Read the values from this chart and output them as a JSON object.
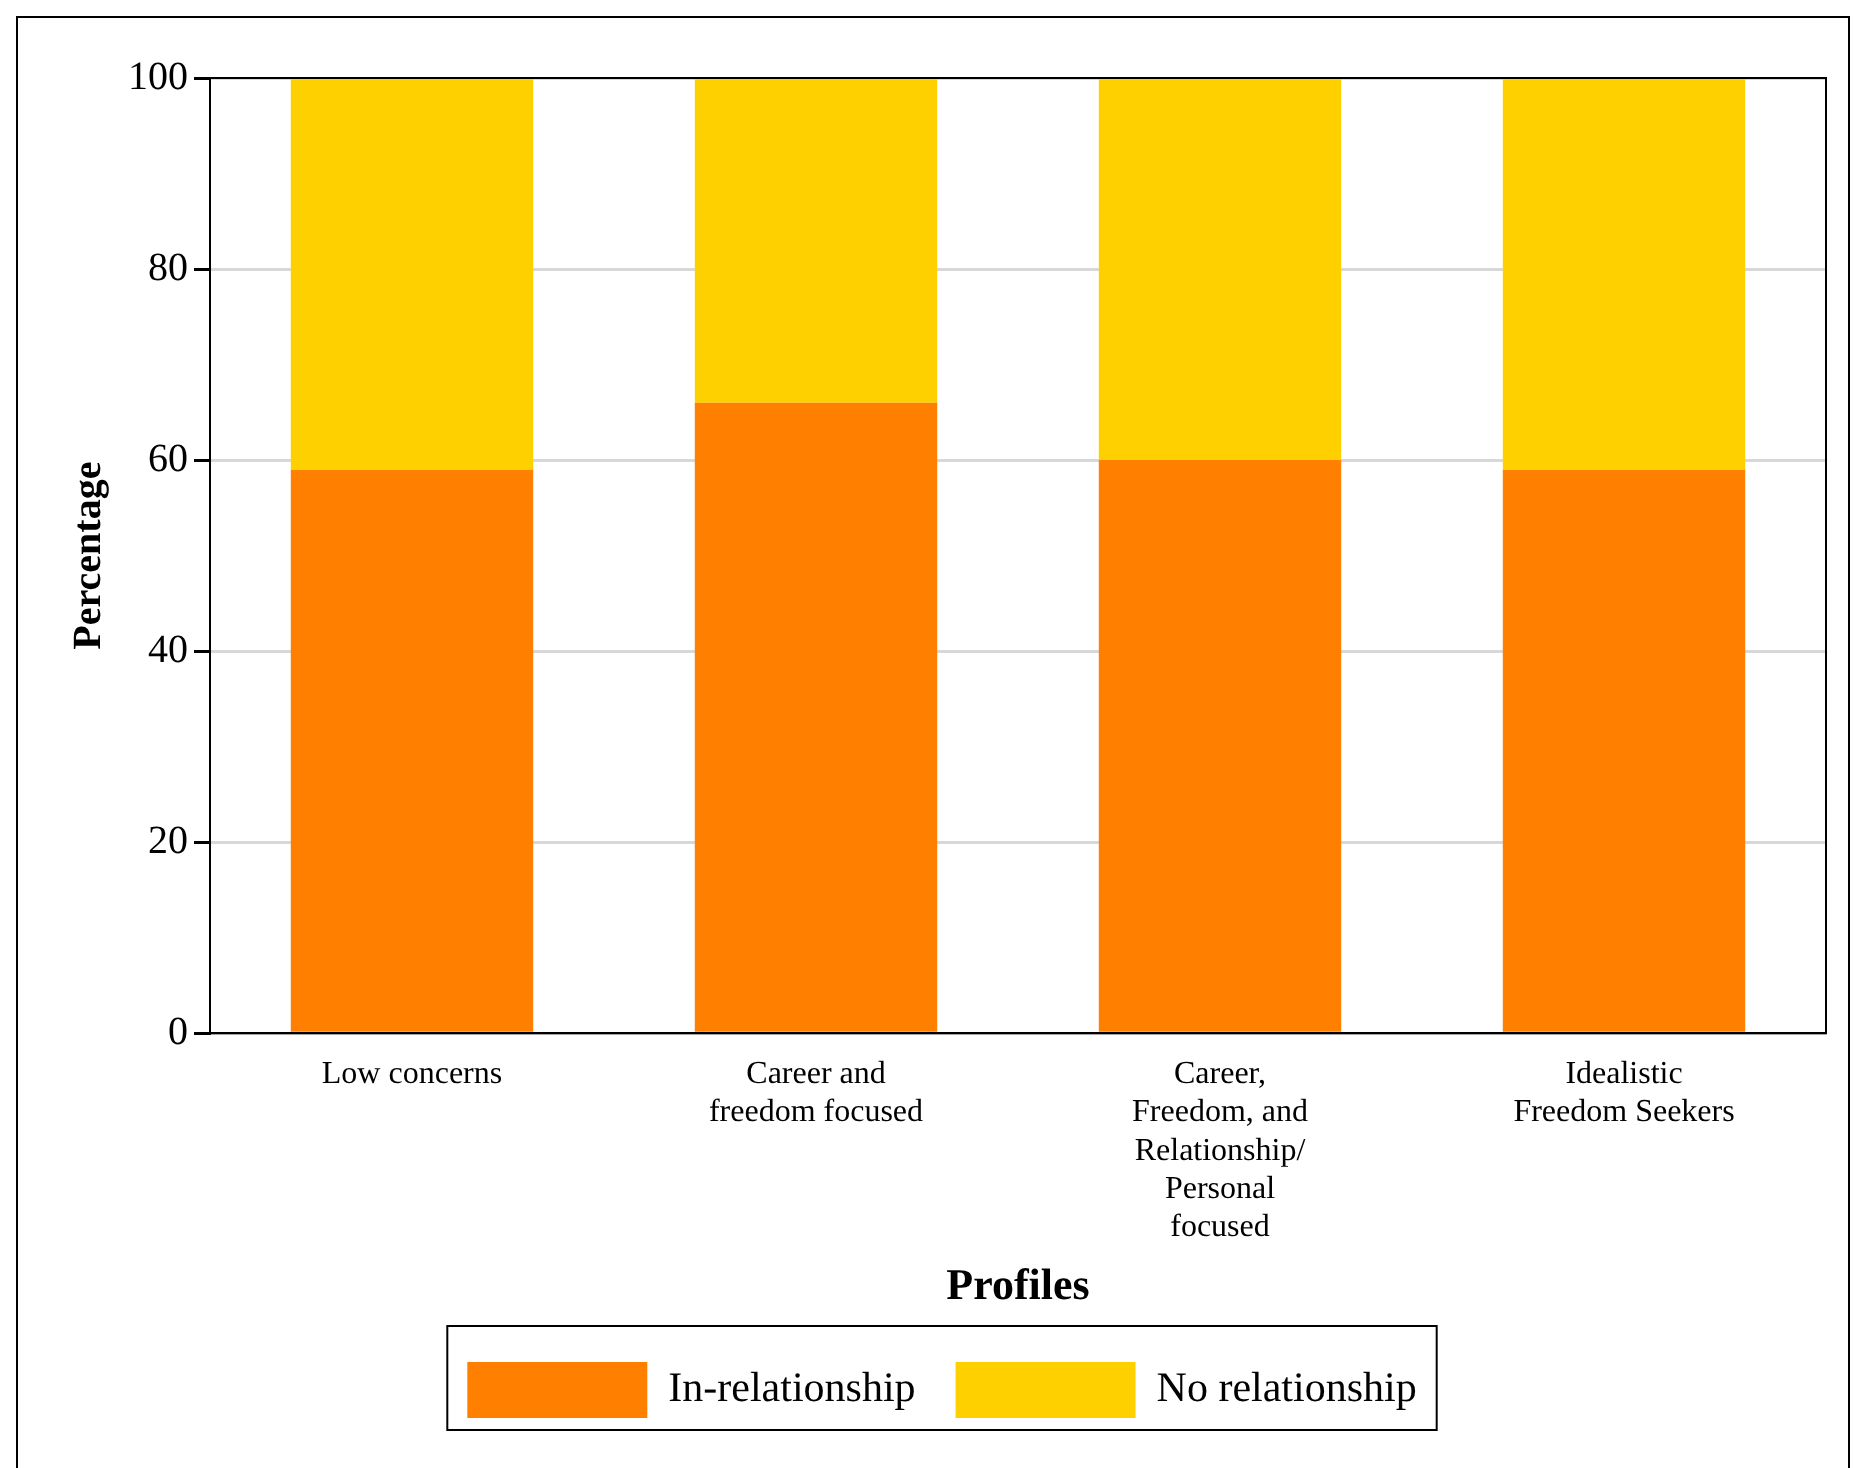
{
  "chart_data": {
    "type": "bar",
    "stacked": true,
    "xlabel": "Profiles",
    "ylabel": "Percentage",
    "categories": [
      "Low concerns",
      "Career and freedom focused",
      "Career, Freedom, and Relationship/ Personal focused",
      "Idealistic Freedom Seekers"
    ],
    "series": [
      {
        "name": "In-relationship",
        "color": "#ff7f00",
        "values": [
          59,
          66,
          60,
          59
        ]
      },
      {
        "name": "No relationship",
        "color": "#ffd000",
        "values": [
          41,
          34,
          40,
          41
        ]
      }
    ],
    "ylim": [
      0,
      100
    ],
    "yticks": [
      0,
      20,
      40,
      60,
      80,
      100
    ],
    "grid": "y",
    "legend": "bottom"
  }
}
